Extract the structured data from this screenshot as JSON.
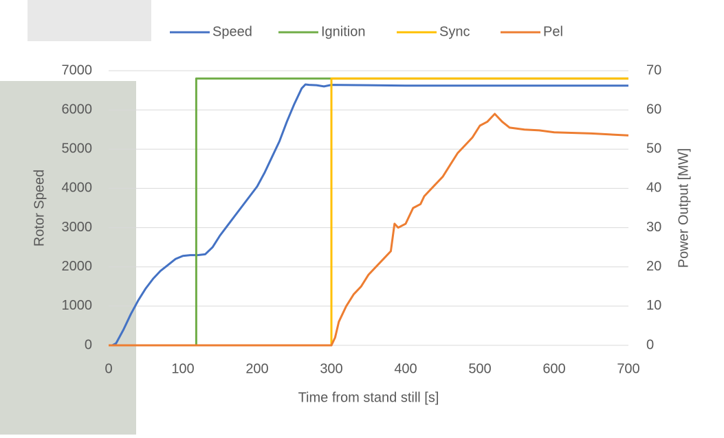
{
  "chart_data": {
    "type": "line",
    "x_label": "Time from stand still [s]",
    "y_label": "Rotor Speed",
    "y2_label": "Power Output [MW]",
    "xlim": [
      0,
      700
    ],
    "xticks": [
      0,
      100,
      200,
      300,
      400,
      500,
      600,
      700
    ],
    "ylim": [
      0,
      7000
    ],
    "yticks": [
      0,
      1000,
      2000,
      3000,
      4000,
      5000,
      6000,
      7000
    ],
    "y2lim": [
      0,
      70
    ],
    "y2ticks": [
      0,
      10,
      20,
      30,
      40,
      50,
      60,
      70
    ],
    "grid": true,
    "legend": "top",
    "series": [
      {
        "name": "Speed",
        "color": "#4472c4",
        "x": [
          0,
          5,
          10,
          20,
          30,
          40,
          50,
          60,
          70,
          80,
          90,
          100,
          110,
          120,
          130,
          140,
          150,
          160,
          170,
          180,
          190,
          200,
          210,
          220,
          230,
          240,
          250,
          260,
          265,
          270,
          280,
          290,
          300,
          350,
          400,
          500,
          600,
          700
        ],
        "values": [
          0,
          0,
          50,
          400,
          800,
          1150,
          1450,
          1700,
          1900,
          2050,
          2200,
          2280,
          2300,
          2300,
          2320,
          2500,
          2800,
          3050,
          3300,
          3550,
          3800,
          4050,
          4400,
          4800,
          5200,
          5700,
          6150,
          6550,
          6650,
          6640,
          6630,
          6600,
          6640,
          6630,
          6620,
          6620,
          6620,
          6620
        ]
      },
      {
        "name": "Ignition",
        "color": "#70ad47",
        "x": [
          0,
          118,
          118,
          700
        ],
        "values": [
          0,
          0,
          6800,
          6800
        ]
      },
      {
        "name": "Sync",
        "color": "#ffc000",
        "x": [
          0,
          300,
          300,
          700
        ],
        "values": [
          0,
          0,
          6800,
          6800
        ]
      },
      {
        "name": "Pel",
        "color": "#ed7d31",
        "axis": "y2",
        "x": [
          0,
          300,
          305,
          310,
          320,
          330,
          340,
          350,
          360,
          370,
          380,
          385,
          390,
          400,
          410,
          420,
          425,
          430,
          440,
          450,
          460,
          470,
          480,
          490,
          500,
          510,
          520,
          530,
          540,
          560,
          580,
          600,
          650,
          700
        ],
        "values": [
          0,
          0,
          2,
          6,
          10,
          13,
          15,
          18,
          20,
          22,
          24,
          31,
          30,
          31,
          35,
          36,
          38,
          39,
          41,
          43,
          46,
          49,
          51,
          53,
          56,
          57,
          59,
          57,
          55.5,
          55,
          54.8,
          54.3,
          54,
          53.5
        ]
      }
    ]
  }
}
